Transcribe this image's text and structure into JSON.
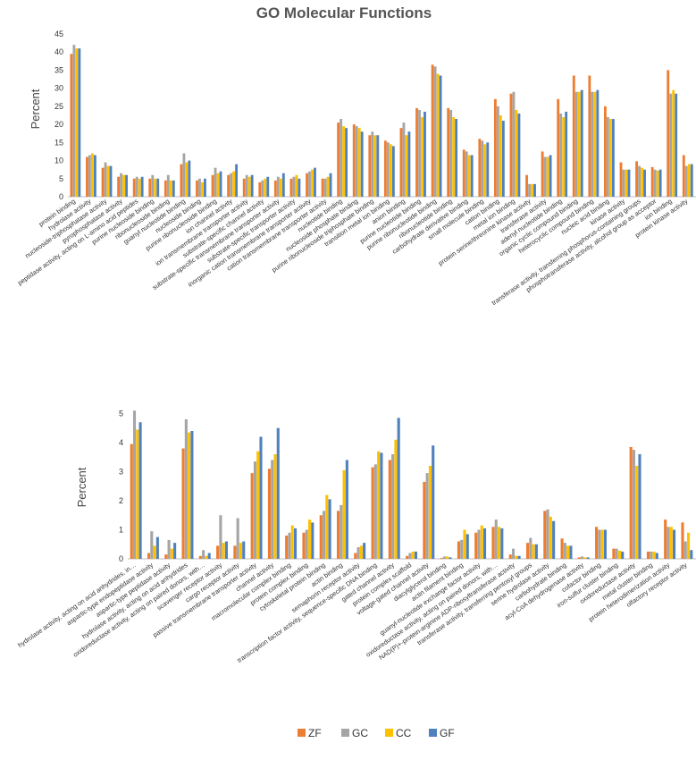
{
  "colors": {
    "ZF": "#ed7d31",
    "GC": "#a5a5a5",
    "CC": "#ffc000",
    "GF": "#4f81bd"
  },
  "chart_data": [
    {
      "type": "bar",
      "title": "GO Molecular Functions",
      "ylabel": "Percent",
      "ylim": [
        0,
        45
      ],
      "yticks": [
        0,
        5,
        10,
        15,
        20,
        25,
        30,
        35,
        40,
        45
      ],
      "grid": false,
      "legend": "bottom",
      "categories": [
        "protein binding",
        "hydrolase activity",
        "nucleoside-triphosphatase activity",
        "pyrophosphatase activity",
        "peptidase activity, acting on L-amino acid peptides",
        "purine nucleoside binding",
        "ribonucleoside binding",
        "guanyl nucleotide binding",
        "nucleoside binding",
        "purine ribonucleoside binding",
        "ion channel activity",
        "ion transmembrane transporter activity",
        "substrate-specific channel activity",
        "substrate-specific transmembrane transporter activity",
        "substrate-specific transporter activity",
        "inorganic cation transmembrane transporter activity",
        "cation transmembrane transporter activity",
        "nucleotide binding",
        "nucleoside phosphate binding",
        "purine ribonucleoside triphosphate binding",
        "transition metal ion binding",
        "anion binding",
        "purine nucleotide binding",
        "purine ribonucleotide binding",
        "ribonucleotide binding",
        "carbohydrate derivative binding",
        "small molecule binding",
        "cation binding",
        "metal ion binding",
        "protein serine/threonine kinase activity",
        "transferase activity",
        "adenyl nucleotide binding",
        "organic cyclic compound binding",
        "heterocyclic compound binding",
        "nucleic acid binding",
        "kinase activity",
        "transferase activity, transferring phosphorus-containing groups",
        "phosphotransferase activity, alcohol group as acceptor",
        "ion binding",
        "protein kinase activity"
      ],
      "series": [
        {
          "name": "ZF",
          "values": [
            39.5,
            11,
            8,
            5.5,
            5,
            5,
            4.5,
            9,
            4.5,
            6,
            6,
            5,
            4,
            4.5,
            5,
            6.5,
            5,
            20.5,
            20,
            17,
            15.5,
            19,
            24.5,
            36.5,
            24.5,
            13,
            16,
            27,
            28.5,
            6,
            12.5,
            27,
            33.5,
            33.5,
            25,
            9.5,
            9.8,
            8.2,
            35,
            11.5
          ]
        },
        {
          "name": "GC",
          "values": [
            42,
            11.5,
            9.5,
            6.5,
            5.5,
            6,
            6,
            12,
            5,
            8,
            6.5,
            6,
            4.5,
            5.5,
            5.5,
            7,
            5,
            21.5,
            19.5,
            18,
            15,
            20.5,
            24,
            36,
            24,
            12.5,
            15.5,
            25,
            29,
            3.5,
            11,
            23,
            29,
            29,
            22,
            7.5,
            8.5,
            7.5,
            28.5,
            8.5
          ]
        },
        {
          "name": "CC",
          "values": [
            41,
            12,
            8.5,
            6,
            5,
            5,
            4.5,
            9.5,
            4,
            6.5,
            7,
            5.5,
            5,
            5,
            6,
            7.5,
            5.5,
            19.5,
            19,
            17,
            14.5,
            17,
            22,
            34,
            22,
            11.5,
            14.5,
            22.5,
            24,
            3.5,
            11,
            22,
            29,
            29,
            21.5,
            7.5,
            8,
            7.2,
            29.5,
            9
          ]
        },
        {
          "name": "GF",
          "values": [
            41,
            11.5,
            8.5,
            6,
            5.5,
            5,
            4.5,
            10,
            5,
            7,
            9,
            6,
            5.5,
            6.5,
            5,
            8,
            6.5,
            19,
            18,
            17,
            14,
            18,
            23.5,
            33.5,
            21.5,
            11.5,
            15,
            21,
            23,
            3.5,
            11.5,
            23.5,
            29.5,
            29.5,
            21.5,
            7.5,
            7.5,
            7.5,
            28.5,
            9
          ]
        }
      ]
    },
    {
      "type": "bar",
      "title": "",
      "ylabel": "Percent",
      "ylim": [
        0,
        5.2
      ],
      "yticks": [
        0,
        1,
        2,
        3,
        4,
        5
      ],
      "grid": false,
      "legend": "bottom",
      "categories": [
        "hydrolase activity, acting on acid anhydrides, in…",
        "aspartic-type endopeptidase activity",
        "aspartic-type peptidase activity",
        "hydrolase activity, acting on acid anhydrides",
        "oxidoreductase activity, acting on paired donors, with…",
        "scavenger receptor activity",
        "cargo receptor activity",
        "passive transmembrane transporter activity",
        "channel activity",
        "macromolecular complex binding",
        "protein complex binding",
        "cytoskeletal protein binding",
        "actin binding",
        "semaphorin receptor activity",
        "transcription factor activity, sequence-specific DNA binding",
        "gated channel activity",
        "protein complex scaffold",
        "voltage-gated channel activity",
        "diacylglycerol binding",
        "actin filament binding",
        "guanyl-nucleotide exchange factor activity",
        "oxidoreductase activity, acting on paired donors, with…",
        "NAD(P)+-protein-arginine ADP-ribosyltransferase activity",
        "transferase activity, transferring pentosyl groups",
        "serine hydrolase activity",
        "carbohydrate binding",
        "acyl-CoA dehydrogenase activity",
        "cofactor binding",
        "iron-sulfur cluster binding",
        "oxidoreductase activity",
        "metal cluster binding",
        "protein heterodimerization activity",
        "olfactory receptor activity"
      ],
      "series": [
        {
          "name": "ZF",
          "values": [
            3.95,
            0.2,
            0.15,
            3.8,
            0.1,
            0.45,
            0.45,
            2.95,
            3.1,
            0.8,
            0.9,
            1.5,
            1.65,
            0.2,
            3.15,
            3.4,
            0.1,
            2.65,
            0.03,
            0.6,
            0.9,
            1.1,
            0.15,
            0.55,
            1.65,
            0.7,
            0.05,
            1.1,
            0.35,
            3.85,
            0.25,
            1.35,
            1.25
          ]
        },
        {
          "name": "GC",
          "values": [
            5.1,
            0.95,
            0.65,
            4.8,
            0.3,
            1.5,
            1.4,
            3.35,
            3.4,
            0.9,
            1.0,
            1.65,
            1.85,
            0.4,
            3.25,
            3.6,
            0.2,
            2.95,
            0.08,
            0.65,
            1.0,
            1.35,
            0.35,
            0.72,
            1.7,
            0.55,
            0.08,
            1.0,
            0.35,
            3.75,
            0.25,
            1.1,
            0.6
          ]
        },
        {
          "name": "CC",
          "values": [
            4.45,
            0.45,
            0.35,
            4.35,
            0.1,
            0.55,
            0.55,
            3.7,
            3.6,
            1.15,
            1.35,
            2.2,
            3.05,
            0.45,
            3.7,
            4.1,
            0.25,
            3.2,
            0.08,
            1.0,
            1.15,
            1.1,
            0.1,
            0.5,
            1.45,
            0.45,
            0.05,
            1.0,
            0.28,
            3.2,
            0.25,
            1.1,
            0.9
          ]
        },
        {
          "name": "GF",
          "values": [
            4.7,
            0.75,
            0.55,
            4.4,
            0.2,
            0.6,
            0.6,
            4.2,
            4.5,
            1.05,
            1.25,
            2.05,
            3.4,
            0.55,
            3.65,
            4.85,
            0.25,
            3.9,
            0.05,
            0.85,
            1.05,
            1.05,
            0.1,
            0.5,
            1.3,
            0.45,
            0.05,
            1.0,
            0.25,
            3.6,
            0.2,
            1.0,
            0.3
          ]
        }
      ]
    }
  ]
}
